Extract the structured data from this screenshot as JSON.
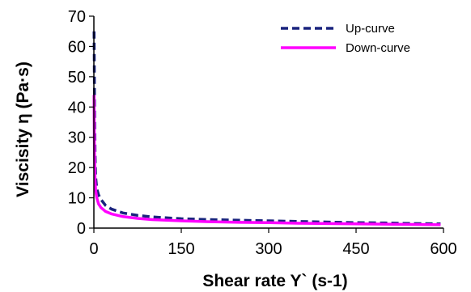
{
  "chart_data": {
    "type": "line",
    "title": "",
    "xlabel": "Shear rate Y` (s-1)",
    "ylabel": "Viscisity η (Pa·s)",
    "xlim": [
      0,
      600
    ],
    "ylim": [
      0,
      70
    ],
    "xticks": [
      0,
      150,
      300,
      450,
      600
    ],
    "yticks": [
      0,
      10,
      20,
      30,
      40,
      50,
      60,
      70
    ],
    "grid": false,
    "legend_position": "top-right",
    "series": [
      {
        "name": "Up-curve",
        "color": "#1a237e",
        "dash": "dashed",
        "x": [
          0.3,
          0.6,
          1,
          2,
          3,
          5,
          8,
          12,
          20,
          30,
          50,
          75,
          100,
          150,
          200,
          250,
          300,
          350,
          400,
          450,
          500,
          550,
          595
        ],
        "y": [
          65,
          58,
          45,
          25,
          17,
          13,
          11,
          9.5,
          7.5,
          6.3,
          5,
          4.2,
          3.7,
          3.1,
          2.8,
          2.6,
          2.4,
          2.2,
          2,
          1.8,
          1.7,
          1.5,
          1.4
        ]
      },
      {
        "name": "Down-curve",
        "color": "#ff00ff",
        "dash": "solid",
        "x": [
          0.3,
          0.6,
          1,
          2,
          3,
          5,
          8,
          12,
          20,
          30,
          50,
          75,
          100,
          150,
          200,
          250,
          300,
          350,
          400,
          450,
          500,
          550,
          595
        ],
        "y": [
          44,
          35,
          25,
          16,
          12.5,
          10,
          8,
          6.8,
          5.5,
          4.7,
          3.8,
          3.2,
          2.8,
          2.4,
          2.1,
          1.9,
          1.8,
          1.6,
          1.5,
          1.4,
          1.3,
          1.2,
          1.1
        ]
      }
    ]
  }
}
